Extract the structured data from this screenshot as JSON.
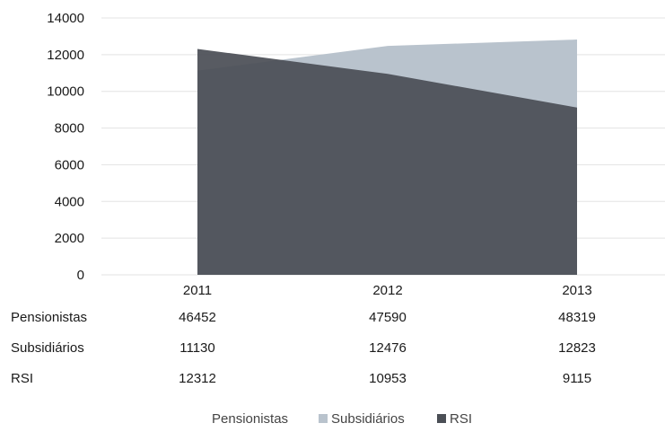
{
  "chart_data": {
    "type": "area",
    "categories": [
      "2011",
      "2012",
      "2013"
    ],
    "ylim": [
      0,
      14000
    ],
    "yticks": [
      0,
      2000,
      4000,
      6000,
      8000,
      10000,
      12000,
      14000
    ],
    "grid": true,
    "legend_position": "bottom",
    "series": [
      {
        "name": "Pensionistas",
        "values": [
          46452,
          47590,
          48319
        ],
        "color": "#ffffff",
        "plotted": false
      },
      {
        "name": "Subsidiários",
        "values": [
          11130,
          12476,
          12823
        ],
        "color": "#b9c3cd",
        "plotted": true
      },
      {
        "name": "RSI",
        "values": [
          12312,
          10953,
          9115
        ],
        "color": "#4b4f56",
        "plotted": true
      }
    ]
  }
}
